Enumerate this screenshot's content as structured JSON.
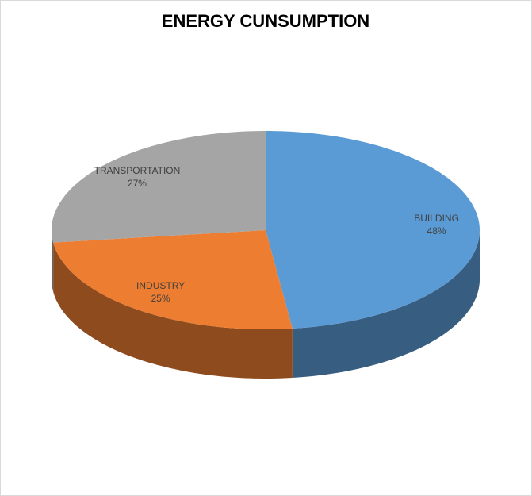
{
  "chart_data": {
    "type": "pie3d",
    "title": "ENERGY CUNSUMPTION",
    "categories": [
      "BUILDING",
      "INDUSTRY",
      "TRANSPORTATION"
    ],
    "values": [
      48,
      25,
      27
    ],
    "value_labels": [
      "48%",
      "25%",
      "27%"
    ],
    "colors": [
      "#5b9bd5",
      "#ed7d31",
      "#a5a5a5"
    ]
  }
}
